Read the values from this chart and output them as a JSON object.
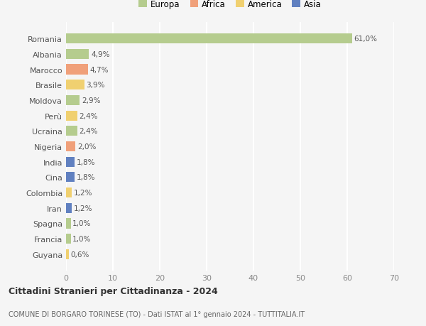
{
  "countries": [
    "Romania",
    "Albania",
    "Marocco",
    "Brasile",
    "Moldova",
    "Perù",
    "Ucraina",
    "Nigeria",
    "India",
    "Cina",
    "Colombia",
    "Iran",
    "Spagna",
    "Francia",
    "Guyana"
  ],
  "values": [
    61.0,
    4.9,
    4.7,
    3.9,
    2.9,
    2.4,
    2.4,
    2.0,
    1.8,
    1.8,
    1.2,
    1.2,
    1.0,
    1.0,
    0.6
  ],
  "labels": [
    "61,0%",
    "4,9%",
    "4,7%",
    "3,9%",
    "2,9%",
    "2,4%",
    "2,4%",
    "2,0%",
    "1,8%",
    "1,8%",
    "1,2%",
    "1,2%",
    "1,0%",
    "1,0%",
    "0,6%"
  ],
  "continents": [
    "Europa",
    "Europa",
    "Africa",
    "America",
    "Europa",
    "America",
    "Europa",
    "Africa",
    "Asia",
    "Asia",
    "America",
    "Asia",
    "Europa",
    "Europa",
    "America"
  ],
  "continent_colors": {
    "Europa": "#b5cc8e",
    "Africa": "#f0a07a",
    "America": "#f0d070",
    "Asia": "#6080c0"
  },
  "legend_order": [
    "Europa",
    "Africa",
    "America",
    "Asia"
  ],
  "title": "Cittadini Stranieri per Cittadinanza - 2024",
  "subtitle": "COMUNE DI BORGARO TORINESE (TO) - Dati ISTAT al 1° gennaio 2024 - TUTTITALIA.IT",
  "xlim": [
    0,
    70
  ],
  "xticks": [
    0,
    10,
    20,
    30,
    40,
    50,
    60,
    70
  ],
  "bg_color": "#f5f5f5",
  "grid_color": "#ffffff"
}
